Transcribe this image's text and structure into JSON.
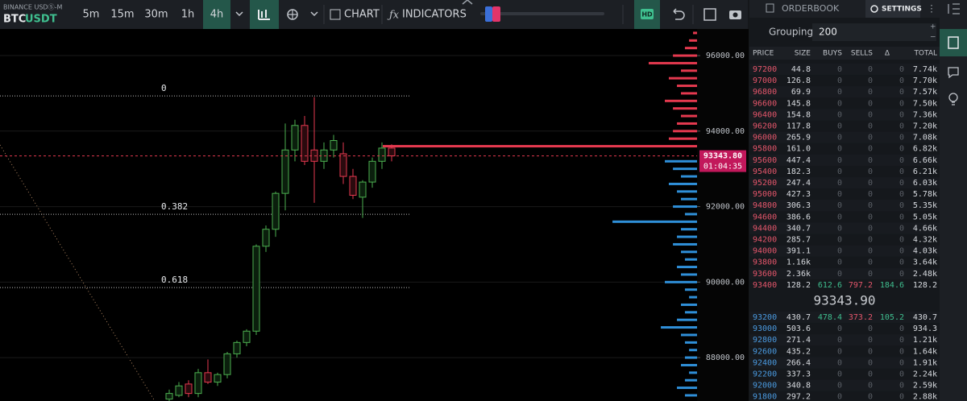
{
  "header": {
    "exchange": "BINANCE USDⓈ-M",
    "base": "BTC",
    "quote": "USDT",
    "timeframes": [
      "5m",
      "15m",
      "30m",
      "1h",
      "4h"
    ],
    "active_timeframe": 4,
    "chart_button": "CHART",
    "indicators_button": "INDICATORS",
    "hd_badge": "HD"
  },
  "chart_data": {
    "type": "candlestick",
    "ylim": [
      86850,
      96705
    ],
    "yticks": [
      {
        "value": 96000,
        "label": "96000.00"
      },
      {
        "value": 94000,
        "label": "94000.00"
      },
      {
        "value": 92000,
        "label": "92000.00"
      },
      {
        "value": 90000,
        "label": "90000.00"
      },
      {
        "value": 88000,
        "label": "88000.00"
      }
    ],
    "grid": true,
    "up_color": "#4caf50",
    "down_color": "#e5394f",
    "open": [
      86900,
      87000,
      87300,
      87050,
      87600,
      87350,
      87550,
      88100,
      88400,
      88700,
      90950,
      91400,
      92350,
      93500,
      94150,
      93500,
      93200,
      93500,
      93400,
      92800,
      92250,
      92650,
      93200,
      93550
    ],
    "high": [
      87150,
      87350,
      87400,
      87700,
      87950,
      87600,
      88150,
      88450,
      88750,
      91000,
      91500,
      92400,
      94200,
      94300,
      94400,
      94900,
      93700,
      93900,
      93700,
      93000,
      92700,
      93300,
      93700,
      93650
    ],
    "low": [
      86800,
      86950,
      86950,
      86950,
      87300,
      87250,
      87450,
      88000,
      88300,
      88600,
      90800,
      91200,
      91900,
      93200,
      93100,
      92100,
      93000,
      93300,
      92600,
      92200,
      91700,
      92500,
      93000,
      93200
    ],
    "close": [
      87050,
      87250,
      87050,
      87600,
      87350,
      87550,
      88100,
      88400,
      88700,
      90950,
      91400,
      92350,
      93500,
      94150,
      93200,
      93200,
      93500,
      93750,
      92800,
      92300,
      92650,
      93200,
      93550,
      93344
    ],
    "last_price": {
      "value": 93343.8,
      "label": "93343.80"
    },
    "countdown": "01:04:35",
    "fib_levels": [
      {
        "label": "0",
        "price": 94933
      },
      {
        "label": "0.382",
        "price": 91797
      },
      {
        "label": "0.618",
        "price": 89856
      }
    ],
    "depth": {
      "ask_color": "#e5394f",
      "bid_color": "#2f8fd8",
      "asks": {
        "prices": [
          93600,
          93800,
          94000,
          94200,
          94400,
          94600,
          94800,
          95000,
          95200,
          95400,
          95600,
          95800,
          96000,
          96200,
          96400,
          96600
        ],
        "sizes": [
          2360,
          212,
          181,
          151,
          121,
          181,
          242,
          121,
          151,
          212,
          121,
          363,
          181,
          91,
          60,
          30
        ]
      },
      "bids": {
        "prices": [
          93200,
          93000,
          92800,
          92600,
          92400,
          92200,
          92000,
          91800,
          91600,
          91400,
          91200,
          91000,
          90800,
          90600,
          90400,
          90200,
          90000,
          89800,
          89600,
          89400,
          89200,
          89000,
          88800,
          88600,
          88400,
          88200,
          88000,
          87800,
          87600,
          87400,
          87200,
          87000
        ],
        "sizes": [
          242,
          181,
          121,
          212,
          151,
          121,
          181,
          91,
          635,
          121,
          151,
          181,
          121,
          91,
          151,
          121,
          242,
          91,
          60,
          121,
          91,
          151,
          272,
          121,
          91,
          60,
          91,
          121,
          60,
          91,
          151,
          91
        ]
      }
    }
  },
  "orderbook": {
    "tabs": [
      "ORDERBOOK",
      "SETTINGS"
    ],
    "grouping_label": "Grouping",
    "grouping_value": "200",
    "columns": [
      "PRICE",
      "SIZE",
      "BUYS",
      "SELLS",
      "Δ",
      "TOTAL"
    ],
    "asks": [
      [
        "97200",
        "44.8",
        "0",
        "0",
        "0",
        "7.74k"
      ],
      [
        "97000",
        "126.8",
        "0",
        "0",
        "0",
        "7.70k"
      ],
      [
        "96800",
        "69.9",
        "0",
        "0",
        "0",
        "7.57k"
      ],
      [
        "96600",
        "145.8",
        "0",
        "0",
        "0",
        "7.50k"
      ],
      [
        "96400",
        "154.8",
        "0",
        "0",
        "0",
        "7.36k"
      ],
      [
        "96200",
        "117.8",
        "0",
        "0",
        "0",
        "7.20k"
      ],
      [
        "96000",
        "265.9",
        "0",
        "0",
        "0",
        "7.08k"
      ],
      [
        "95800",
        "161.0",
        "0",
        "0",
        "0",
        "6.82k"
      ],
      [
        "95600",
        "447.4",
        "0",
        "0",
        "0",
        "6.66k"
      ],
      [
        "95400",
        "182.3",
        "0",
        "0",
        "0",
        "6.21k"
      ],
      [
        "95200",
        "247.4",
        "0",
        "0",
        "0",
        "6.03k"
      ],
      [
        "95000",
        "427.3",
        "0",
        "0",
        "0",
        "5.78k"
      ],
      [
        "94800",
        "306.3",
        "0",
        "0",
        "0",
        "5.35k"
      ],
      [
        "94600",
        "386.6",
        "0",
        "0",
        "0",
        "5.05k"
      ],
      [
        "94400",
        "340.7",
        "0",
        "0",
        "0",
        "4.66k"
      ],
      [
        "94200",
        "285.7",
        "0",
        "0",
        "0",
        "4.32k"
      ],
      [
        "94000",
        "391.1",
        "0",
        "0",
        "0",
        "4.03k"
      ],
      [
        "93800",
        "1.16k",
        "0",
        "0",
        "0",
        "3.64k"
      ],
      [
        "93600",
        "2.36k",
        "0",
        "0",
        "0",
        "2.48k"
      ],
      [
        "93400",
        "128.2",
        "612.6",
        "797.2",
        "184.6",
        "128.2"
      ]
    ],
    "mid_price": "93343.90",
    "bids": [
      [
        "93200",
        "430.7",
        "478.4",
        "373.2",
        "105.2",
        "430.7"
      ],
      [
        "93000",
        "503.6",
        "0",
        "0",
        "0",
        "934.3"
      ],
      [
        "92800",
        "271.4",
        "0",
        "0",
        "0",
        "1.21k"
      ],
      [
        "92600",
        "435.2",
        "0",
        "0",
        "0",
        "1.64k"
      ],
      [
        "92400",
        "266.4",
        "0",
        "0",
        "0",
        "1.91k"
      ],
      [
        "92200",
        "337.3",
        "0",
        "0",
        "0",
        "2.24k"
      ],
      [
        "92000",
        "340.8",
        "0",
        "0",
        "0",
        "2.59k"
      ],
      [
        "91800",
        "297.2",
        "0",
        "0",
        "0",
        "2.88k"
      ]
    ]
  }
}
